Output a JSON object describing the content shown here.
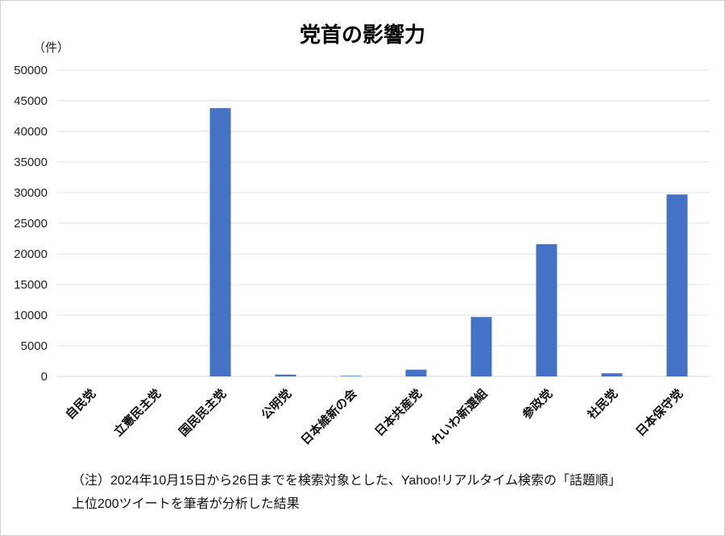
{
  "chart_data": {
    "type": "bar",
    "title": "党首の影響力",
    "ylabel": "（件）",
    "xlabel": "",
    "categories": [
      "自民党",
      "立憲民主党",
      "国民民主党",
      "公明党",
      "日本維新の会",
      "日本共産党",
      "れいわ新選組",
      "参政党",
      "社民党",
      "日本保守党"
    ],
    "values": [
      0,
      0,
      43800,
      300,
      100,
      1100,
      9700,
      21600,
      500,
      29700
    ],
    "ylim": [
      0,
      50000
    ],
    "yticks": [
      0,
      5000,
      10000,
      15000,
      20000,
      25000,
      30000,
      35000,
      40000,
      45000,
      50000
    ],
    "grid": true,
    "legend": "none",
    "bar_color": "#4472C4"
  },
  "notes": {
    "line1": "（注）2024年10月15日から26日までを検索対象とした、Yahoo!リアルタイム検索の「話題順」",
    "line2": "上位200ツイートを筆者が分析した結果"
  }
}
